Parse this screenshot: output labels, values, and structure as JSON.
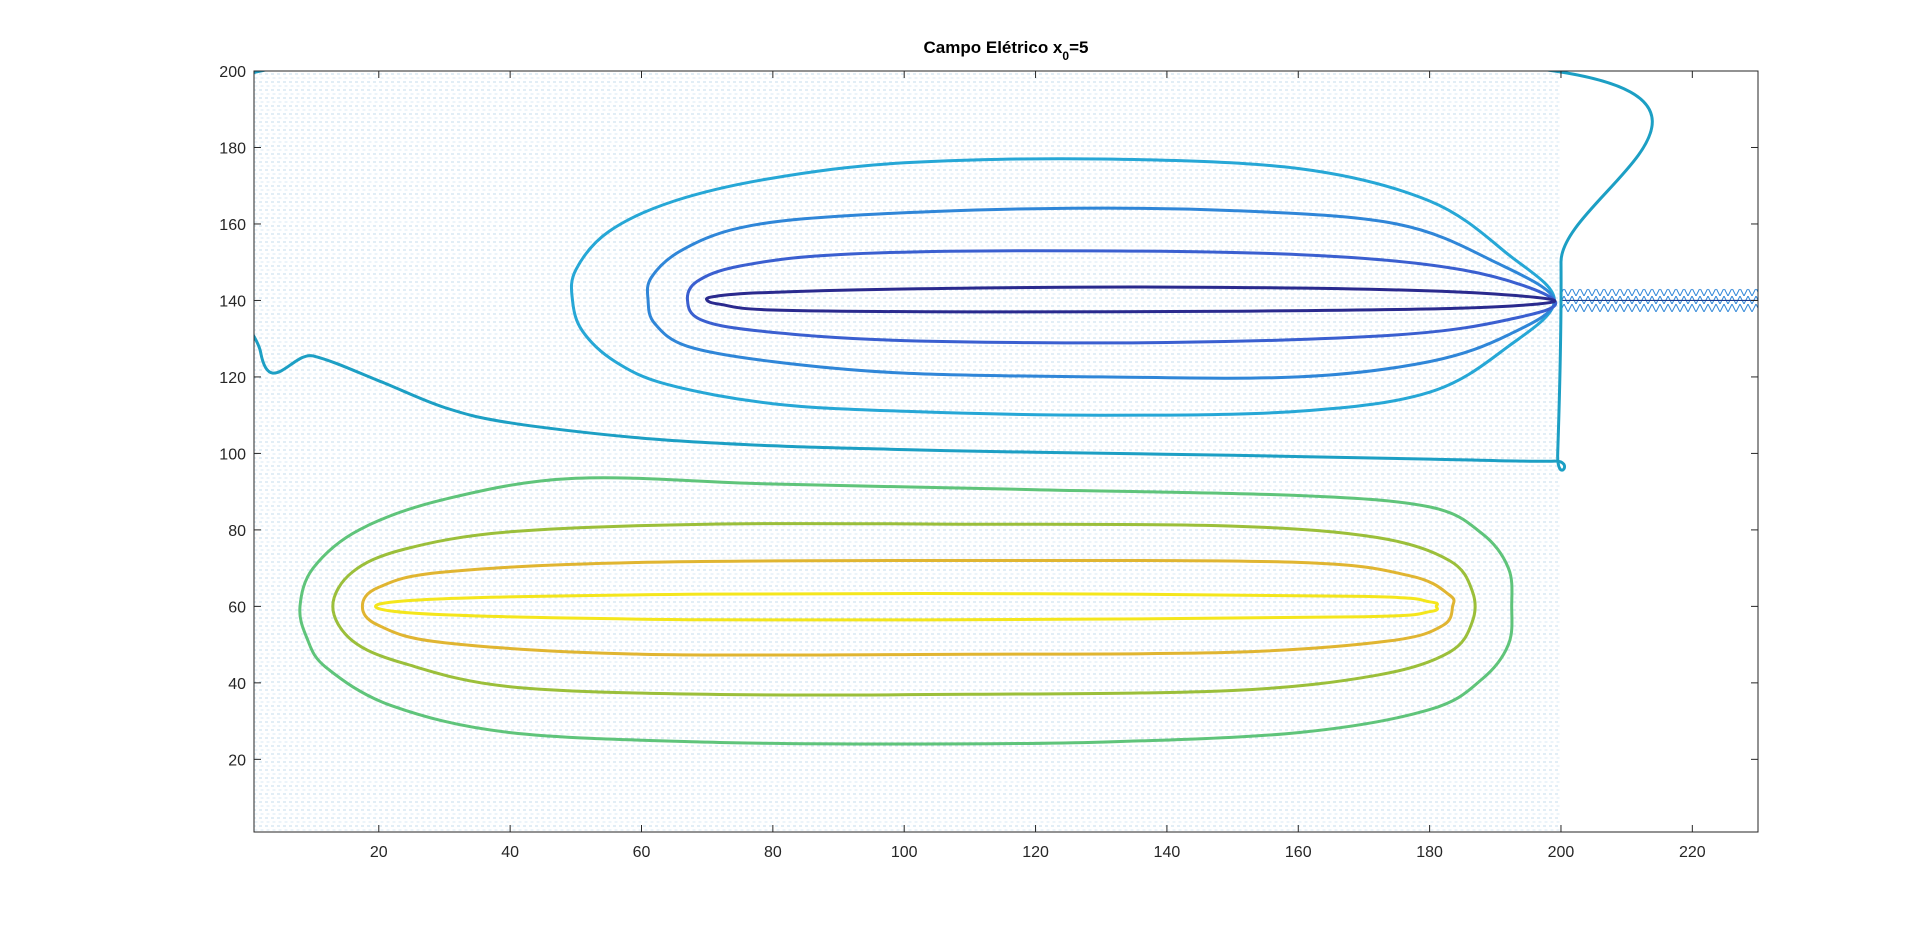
{
  "chart_data": {
    "type": "contour",
    "title": "Campo Elétrico x",
    "title_subscript": "0",
    "title_suffix": "=5",
    "xlabel": "",
    "ylabel": "",
    "xlim": [
      1,
      230
    ],
    "ylim": [
      1,
      200
    ],
    "xticks": [
      20,
      40,
      60,
      80,
      100,
      120,
      140,
      160,
      180,
      200,
      220
    ],
    "yticks": [
      20,
      40,
      60,
      80,
      100,
      120,
      140,
      160,
      180,
      200
    ],
    "grid": false,
    "box": true,
    "quiver_region": {
      "x": [
        1,
        200
      ],
      "y": [
        1,
        200
      ],
      "color": "#7fb6d9"
    },
    "contours": [
      {
        "level_index": 0,
        "color": "#1c9fc4",
        "closed": true,
        "points": [
          [
            2,
            200
          ],
          [
            199,
            200
          ],
          [
            200,
            150
          ],
          [
            199.5,
            100
          ],
          [
            199,
            98
          ],
          [
            180,
            98.5
          ],
          [
            150,
            99.5
          ],
          [
            120,
            100.3
          ],
          [
            100,
            101
          ],
          [
            80,
            102
          ],
          [
            60,
            104
          ],
          [
            40,
            108
          ],
          [
            30,
            112
          ],
          [
            20,
            119
          ],
          [
            10,
            125.5
          ],
          [
            2,
            126.5
          ]
        ]
      },
      {
        "level_index": 1,
        "color": "#26a7d6",
        "closed": true,
        "points": [
          [
            199,
            140
          ],
          [
            192,
            152
          ],
          [
            180,
            166
          ],
          [
            160,
            174.5
          ],
          [
            130,
            177
          ],
          [
            100,
            176
          ],
          [
            80,
            172
          ],
          [
            65,
            166
          ],
          [
            55,
            158
          ],
          [
            50,
            148
          ],
          [
            49.5,
            140
          ],
          [
            51,
            132
          ],
          [
            56,
            124
          ],
          [
            64,
            118
          ],
          [
            80,
            113
          ],
          [
            100,
            111
          ],
          [
            130,
            110
          ],
          [
            160,
            111
          ],
          [
            180,
            116
          ],
          [
            192,
            128
          ]
        ]
      },
      {
        "level_index": 2,
        "color": "#2f86d8",
        "closed": true,
        "points": [
          [
            199,
            140
          ],
          [
            190,
            150
          ],
          [
            175,
            160
          ],
          [
            150,
            163.5
          ],
          [
            120,
            164
          ],
          [
            90,
            162
          ],
          [
            75,
            159
          ],
          [
            66,
            153
          ],
          [
            61.5,
            146
          ],
          [
            61,
            140
          ],
          [
            62,
            134
          ],
          [
            67,
            128
          ],
          [
            80,
            124
          ],
          [
            100,
            121
          ],
          [
            130,
            120
          ],
          [
            160,
            120
          ],
          [
            180,
            124
          ],
          [
            192,
            131
          ]
        ]
      },
      {
        "level_index": 3,
        "color": "#3a5fd0",
        "closed": true,
        "points": [
          [
            199,
            140
          ],
          [
            185,
            148
          ],
          [
            160,
            152
          ],
          [
            120,
            153
          ],
          [
            90,
            152
          ],
          [
            75,
            149
          ],
          [
            68.5,
            145
          ],
          [
            67,
            140
          ],
          [
            69,
            135
          ],
          [
            78,
            132
          ],
          [
            100,
            129.5
          ],
          [
            140,
            129
          ],
          [
            175,
            131
          ],
          [
            192,
            135
          ]
        ]
      },
      {
        "level_index": 4,
        "color": "#2a2a8e",
        "closed": true,
        "points": [
          [
            199,
            140
          ],
          [
            180,
            142.5
          ],
          [
            140,
            143.5
          ],
          [
            100,
            143
          ],
          [
            78,
            142
          ],
          [
            71,
            141
          ],
          [
            70,
            140
          ],
          [
            72,
            139
          ],
          [
            80,
            137.5
          ],
          [
            110,
            137
          ],
          [
            150,
            137.2
          ],
          [
            185,
            138
          ]
        ]
      },
      {
        "level_index": 5,
        "color": "#5fc47a",
        "closed": true,
        "points": [
          [
            8,
            60
          ],
          [
            10,
            70
          ],
          [
            17,
            80
          ],
          [
            30,
            88
          ],
          [
            50,
            93.5
          ],
          [
            80,
            92
          ],
          [
            120,
            90.5
          ],
          [
            160,
            89
          ],
          [
            180,
            86
          ],
          [
            188,
            79
          ],
          [
            192,
            70
          ],
          [
            192.5,
            60
          ],
          [
            192,
            50
          ],
          [
            188,
            41
          ],
          [
            180,
            33
          ],
          [
            160,
            27
          ],
          [
            130,
            24.5
          ],
          [
            100,
            24
          ],
          [
            70,
            24.5
          ],
          [
            40,
            27
          ],
          [
            22,
            34
          ],
          [
            12,
            44
          ],
          [
            9,
            52
          ]
        ]
      },
      {
        "level_index": 6,
        "color": "#9bbf3a",
        "closed": true,
        "points": [
          [
            13,
            60
          ],
          [
            16,
            69
          ],
          [
            24,
            75
          ],
          [
            40,
            79.5
          ],
          [
            70,
            81.5
          ],
          [
            110,
            81.5
          ],
          [
            150,
            81
          ],
          [
            172,
            78
          ],
          [
            183,
            72
          ],
          [
            186.5,
            64
          ],
          [
            186.5,
            56
          ],
          [
            183,
            48
          ],
          [
            172,
            42
          ],
          [
            150,
            38
          ],
          [
            110,
            37
          ],
          [
            70,
            37
          ],
          [
            40,
            39
          ],
          [
            24,
            45
          ],
          [
            16,
            51
          ]
        ]
      },
      {
        "level_index": 7,
        "color": "#e0b531",
        "closed": true,
        "points": [
          [
            17.5,
            60
          ],
          [
            20,
            65
          ],
          [
            30,
            69
          ],
          [
            60,
            71.5
          ],
          [
            110,
            72
          ],
          [
            160,
            71.5
          ],
          [
            177,
            68
          ],
          [
            183,
            63
          ],
          [
            183.5,
            60
          ],
          [
            182,
            55
          ],
          [
            174,
            51
          ],
          [
            150,
            48
          ],
          [
            110,
            47.5
          ],
          [
            60,
            47.5
          ],
          [
            30,
            50.5
          ],
          [
            20,
            55
          ]
        ]
      },
      {
        "level_index": 8,
        "color": "#f4e61c",
        "closed": true,
        "points": [
          [
            19.5,
            60
          ],
          [
            30,
            62
          ],
          [
            70,
            63.2
          ],
          [
            120,
            63.3
          ],
          [
            170,
            62.6
          ],
          [
            180,
            61.2
          ],
          [
            181,
            60
          ],
          [
            180,
            58.6
          ],
          [
            170,
            57.3
          ],
          [
            120,
            56.6
          ],
          [
            70,
            56.5
          ],
          [
            30,
            57.8
          ]
        ]
      }
    ],
    "annotations": [
      {
        "type": "hatched-band",
        "x": [
          200,
          230
        ],
        "y": [
          137,
          143
        ],
        "color": "#2f86d8"
      }
    ]
  }
}
